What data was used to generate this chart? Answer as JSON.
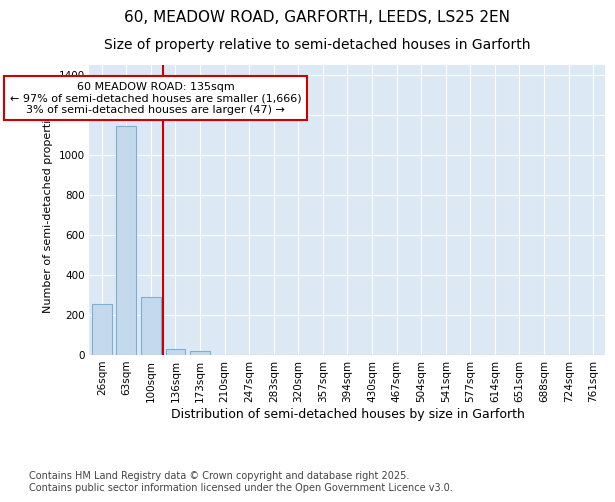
{
  "title": "60, MEADOW ROAD, GARFORTH, LEEDS, LS25 2EN",
  "subtitle": "Size of property relative to semi-detached houses in Garforth",
  "xlabel": "Distribution of semi-detached houses by size in Garforth",
  "ylabel": "Number of semi-detached properties",
  "categories": [
    "26sqm",
    "63sqm",
    "100sqm",
    "136sqm",
    "173sqm",
    "210sqm",
    "247sqm",
    "283sqm",
    "320sqm",
    "357sqm",
    "394sqm",
    "430sqm",
    "467sqm",
    "504sqm",
    "541sqm",
    "577sqm",
    "614sqm",
    "651sqm",
    "688sqm",
    "724sqm",
    "761sqm"
  ],
  "values": [
    255,
    1145,
    290,
    30,
    18,
    0,
    0,
    0,
    0,
    0,
    0,
    0,
    0,
    0,
    0,
    0,
    0,
    0,
    0,
    0,
    0
  ],
  "bar_color": "#c5d9ed",
  "bar_edge_color": "#7bafd4",
  "red_line_color": "#cc0000",
  "red_line_x": 2.5,
  "annotation_text": "60 MEADOW ROAD: 135sqm\n← 97% of semi-detached houses are smaller (1,666)\n3% of semi-detached houses are larger (47) →",
  "annotation_box_edgecolor": "#cc0000",
  "annotation_box_facecolor": "#ffffff",
  "ylim": [
    0,
    1450
  ],
  "yticks": [
    0,
    200,
    400,
    600,
    800,
    1000,
    1200,
    1400
  ],
  "background_color": "#dce9f5",
  "grid_color": "#ffffff",
  "footer_text": "Contains HM Land Registry data © Crown copyright and database right 2025.\nContains public sector information licensed under the Open Government Licence v3.0.",
  "title_fontsize": 11,
  "subtitle_fontsize": 10,
  "xlabel_fontsize": 9,
  "ylabel_fontsize": 8,
  "tick_fontsize": 7.5,
  "annotation_fontsize": 8,
  "footer_fontsize": 7
}
